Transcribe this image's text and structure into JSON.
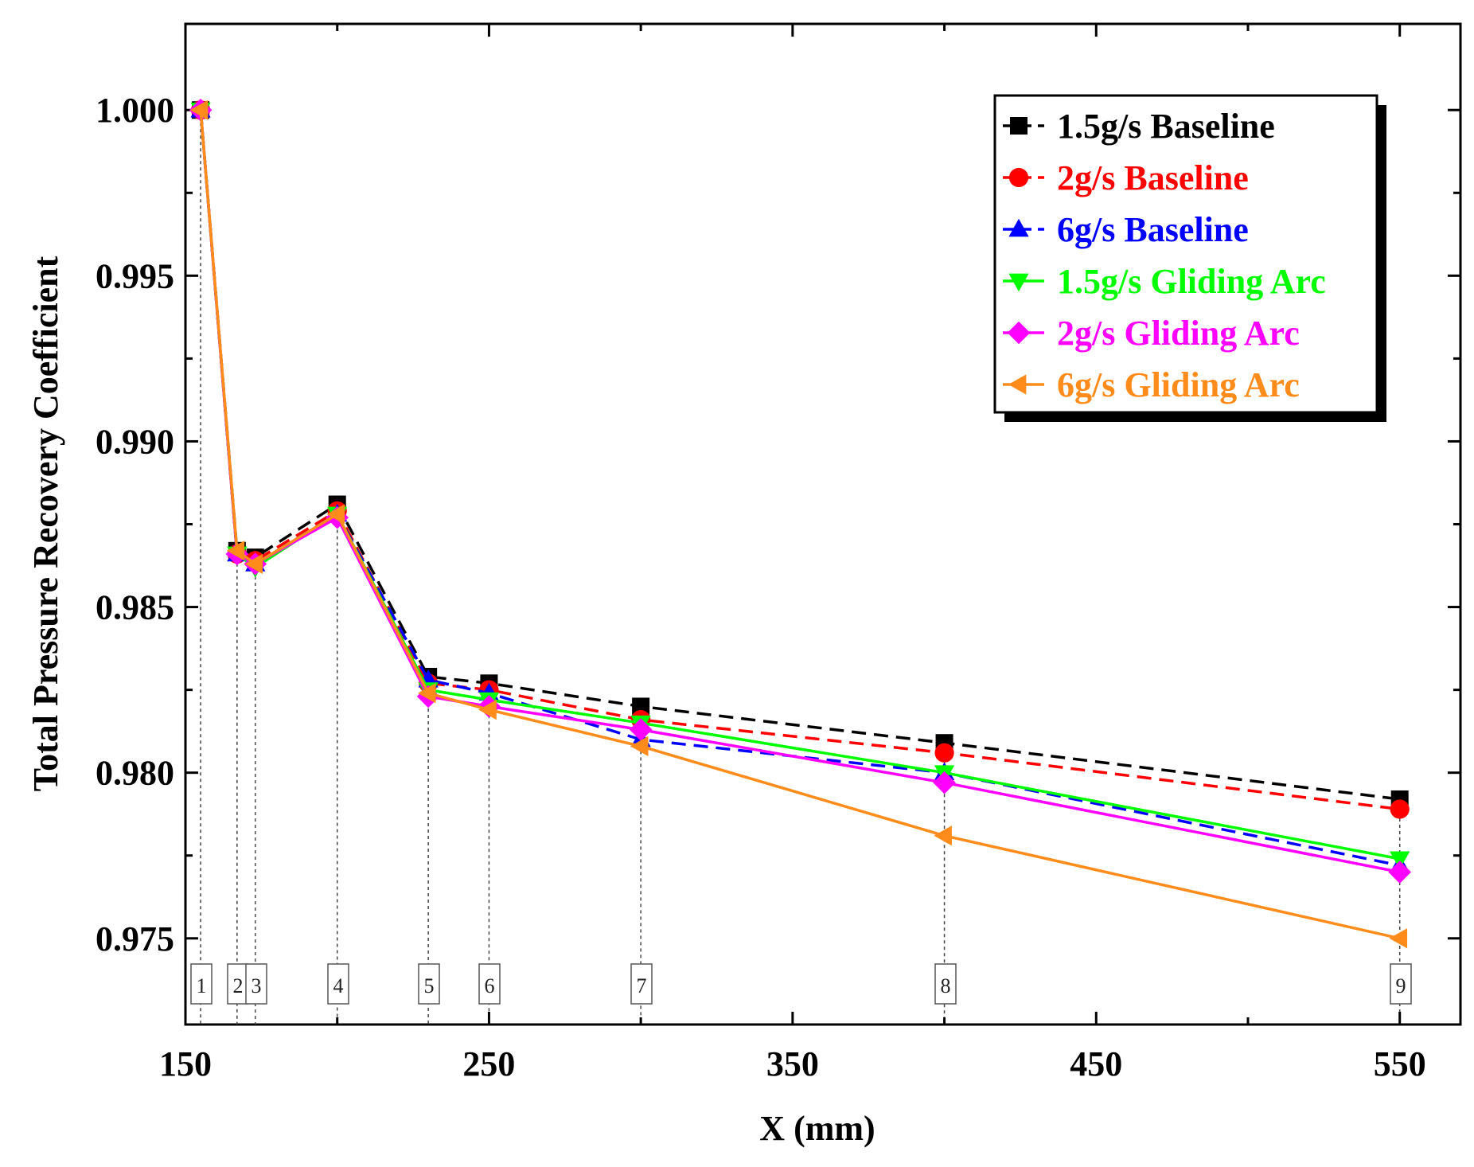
{
  "chart_data": {
    "type": "line",
    "xlabel": "X (mm)",
    "ylabel": "Total Pressure Recovery Coefficient",
    "xlim": [
      150,
      570
    ],
    "ylim": [
      0.9724,
      1.0026
    ],
    "x_ticks": [
      150,
      250,
      350,
      450,
      550
    ],
    "x_minor_ticks": [
      200,
      300,
      400,
      500
    ],
    "y_ticks": [
      0.975,
      0.98,
      0.985,
      0.99,
      0.995,
      1.0
    ],
    "y_tick_labels": [
      "0.975",
      "0.980",
      "0.985",
      "0.990",
      "0.995",
      "1.000"
    ],
    "y_minor_ticks": [
      0.9775,
      0.9825,
      0.9875,
      0.9925,
      0.9975
    ],
    "grid": false,
    "legend_position": "top-right",
    "x": [
      155,
      167,
      173,
      200,
      230,
      250,
      300,
      400,
      550
    ],
    "stations": {
      "labels": [
        "1",
        "2",
        "3",
        "4",
        "5",
        "6",
        "7",
        "8",
        "9"
      ],
      "x": [
        155,
        167,
        173,
        200,
        230,
        250,
        300,
        400,
        550
      ]
    },
    "series": [
      {
        "name": "1.5g/s Baseline",
        "color": "#000000",
        "marker": "square",
        "dashed": true,
        "values": [
          1.0,
          0.9867,
          0.9865,
          0.9881,
          0.9829,
          0.9827,
          0.982,
          0.9809,
          0.9792
        ]
      },
      {
        "name": "2g/s Baseline",
        "color": "#ff0000",
        "marker": "circle",
        "dashed": true,
        "values": [
          1.0,
          0.9866,
          0.9864,
          0.9879,
          0.9827,
          0.9825,
          0.9816,
          0.9806,
          0.9789
        ]
      },
      {
        "name": "6g/s Baseline",
        "color": "#0000ff",
        "marker": "triangle-up",
        "dashed": true,
        "values": [
          1.0,
          0.9866,
          0.9863,
          0.9878,
          0.9828,
          0.9824,
          0.981,
          0.98,
          0.9772
        ]
      },
      {
        "name": "1.5g/s Gliding Arc",
        "color": "#00ff00",
        "marker": "triangle-down",
        "dashed": false,
        "values": [
          1.0,
          0.9866,
          0.9862,
          0.9878,
          0.9825,
          0.9822,
          0.9815,
          0.98,
          0.9774
        ]
      },
      {
        "name": "2g/s Gliding Arc",
        "color": "#ff00ff",
        "marker": "diamond",
        "dashed": false,
        "values": [
          1.0,
          0.9866,
          0.9863,
          0.9877,
          0.9823,
          0.982,
          0.9813,
          0.9797,
          0.977
        ]
      },
      {
        "name": "6g/s Gliding Arc",
        "color": "#ff8c1a",
        "marker": "triangle-left",
        "dashed": false,
        "values": [
          1.0,
          0.9867,
          0.9863,
          0.9878,
          0.9824,
          0.9819,
          0.9808,
          0.9781,
          0.975
        ]
      }
    ]
  }
}
